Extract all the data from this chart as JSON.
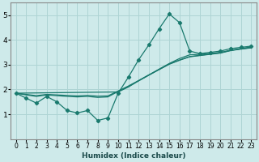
{
  "xlabel": "Humidex (Indice chaleur)",
  "xlim": [
    -0.5,
    23.5
  ],
  "ylim": [
    0,
    5.5
  ],
  "yticks": [
    1,
    2,
    3,
    4,
    5
  ],
  "xticks": [
    0,
    1,
    2,
    3,
    4,
    5,
    6,
    7,
    8,
    9,
    10,
    11,
    12,
    13,
    14,
    15,
    16,
    17,
    18,
    19,
    20,
    21,
    22,
    23
  ],
  "bg_color": "#ceeaea",
  "grid_color": "#aed4d4",
  "line_color": "#1a7a6e",
  "jagged_line": {
    "x": [
      0,
      1,
      2,
      3,
      4,
      5,
      6,
      7,
      8,
      9,
      10,
      11,
      12,
      13,
      14,
      15,
      16,
      17,
      18,
      19,
      20,
      21,
      22,
      23
    ],
    "y": [
      1.85,
      1.65,
      1.45,
      1.72,
      1.5,
      1.15,
      1.05,
      1.15,
      0.75,
      0.85,
      1.85,
      2.5,
      3.2,
      3.8,
      4.45,
      5.05,
      4.7,
      3.55,
      3.45,
      3.5,
      3.55,
      3.65,
      3.7,
      3.75
    ]
  },
  "straight_lines": [
    {
      "x": [
        0,
        10,
        11,
        12,
        13,
        14,
        15,
        16,
        17,
        18,
        19,
        20,
        21,
        22,
        23
      ],
      "y": [
        1.85,
        1.9,
        2.1,
        2.35,
        2.58,
        2.82,
        3.05,
        3.25,
        3.4,
        3.42,
        3.45,
        3.5,
        3.58,
        3.65,
        3.72
      ]
    },
    {
      "x": [
        0,
        1,
        2,
        3,
        4,
        5,
        6,
        7,
        8,
        9,
        10,
        11,
        12,
        13,
        14,
        15,
        16,
        17,
        18,
        19,
        20,
        21,
        22,
        23
      ],
      "y": [
        1.85,
        1.78,
        1.72,
        1.78,
        1.75,
        1.72,
        1.7,
        1.72,
        1.68,
        1.7,
        1.92,
        2.12,
        2.35,
        2.58,
        2.8,
        3.02,
        3.18,
        3.32,
        3.37,
        3.42,
        3.47,
        3.57,
        3.63,
        3.68
      ]
    },
    {
      "x": [
        0,
        1,
        2,
        3,
        4,
        5,
        6,
        7,
        8,
        9,
        10,
        11,
        12,
        13,
        14,
        15,
        16,
        17,
        18,
        19,
        20,
        21,
        22,
        23
      ],
      "y": [
        1.85,
        1.8,
        1.75,
        1.8,
        1.78,
        1.76,
        1.74,
        1.76,
        1.73,
        1.74,
        1.94,
        2.14,
        2.36,
        2.59,
        2.81,
        3.03,
        3.19,
        3.33,
        3.38,
        3.43,
        3.48,
        3.58,
        3.64,
        3.69
      ]
    }
  ]
}
